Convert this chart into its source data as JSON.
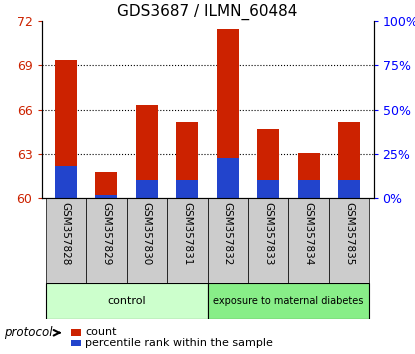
{
  "title": "GDS3687 / ILMN_60484",
  "samples": [
    "GSM357828",
    "GSM357829",
    "GSM357830",
    "GSM357831",
    "GSM357832",
    "GSM357833",
    "GSM357834",
    "GSM357835"
  ],
  "red_values": [
    69.35,
    61.75,
    66.3,
    65.2,
    71.5,
    64.7,
    63.1,
    65.2
  ],
  "blue_values": [
    62.2,
    60.25,
    61.25,
    61.25,
    62.7,
    61.25,
    61.25,
    61.25
  ],
  "y_min": 60,
  "y_max": 72,
  "y_ticks": [
    60,
    63,
    66,
    69,
    72
  ],
  "y_right_ticks": [
    0,
    25,
    50,
    75,
    100
  ],
  "y_right_tick_positions": [
    60,
    63,
    66,
    69,
    72
  ],
  "red_color": "#cc2200",
  "blue_color": "#2244cc",
  "bar_width": 0.55,
  "control_color": "#ccffcc",
  "exposure_color": "#88ee88",
  "sample_bg_color": "#cccccc",
  "protocol_label": "protocol",
  "legend_items": [
    "count",
    "percentile rank within the sample"
  ],
  "title_fontsize": 11,
  "tick_fontsize": 9,
  "label_fontsize": 7.5,
  "group_fontsize": 8,
  "legend_fontsize": 8
}
